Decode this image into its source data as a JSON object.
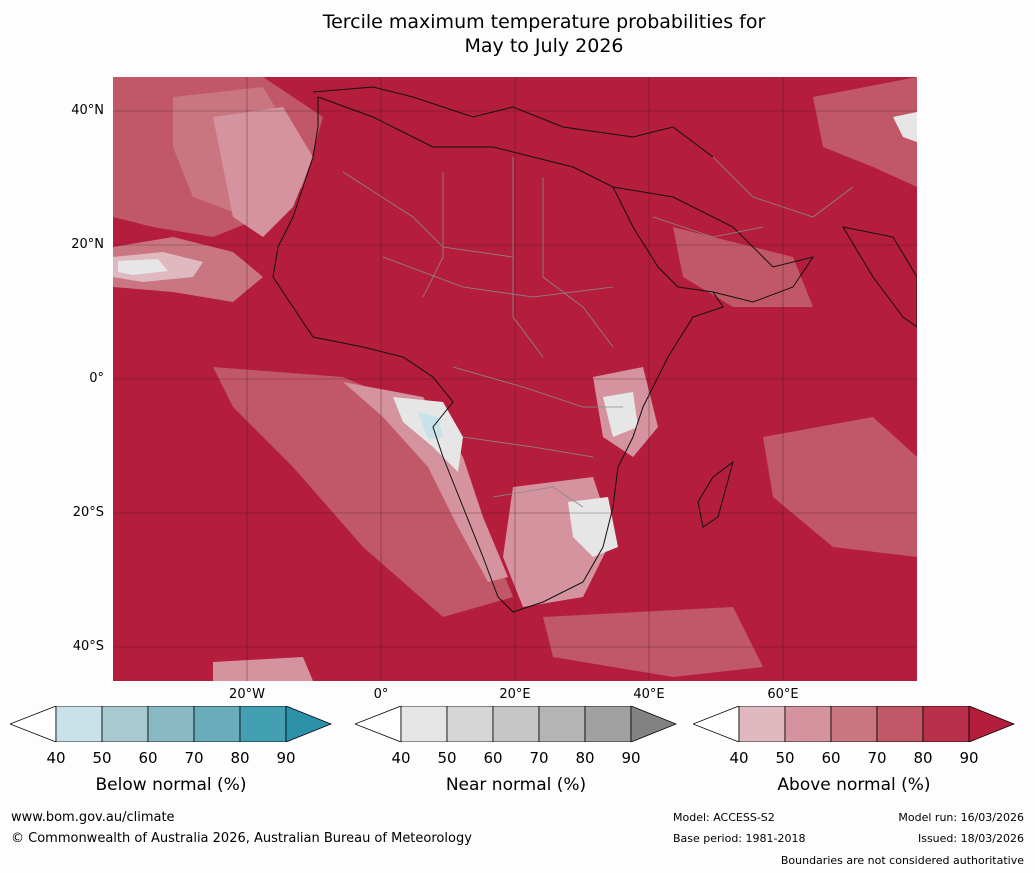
{
  "title_line1": "Tercile maximum temperature probabilities for",
  "title_line2": "May to July 2026",
  "map": {
    "lat_labels": [
      "40°N",
      "20°N",
      "0°",
      "20°S",
      "40°S"
    ],
    "lon_labels": [
      "20°W",
      "0°",
      "20°E",
      "40°E",
      "60°E"
    ],
    "dominant_color": "#b51d3c"
  },
  "colorbars": [
    {
      "title": "Below normal (%)",
      "ticks": [
        "40",
        "50",
        "60",
        "70",
        "80",
        "90"
      ],
      "colors": [
        "#ffffff",
        "#c9e1e8",
        "#a9c9d1",
        "#8ab9c6",
        "#6aabbc",
        "#43a0b3",
        "#2c90a8"
      ]
    },
    {
      "title": "Near normal (%)",
      "ticks": [
        "40",
        "50",
        "60",
        "70",
        "80",
        "90"
      ],
      "colors": [
        "#ffffff",
        "#e6e6e6",
        "#d6d6d6",
        "#c6c6c6",
        "#b4b4b4",
        "#a1a1a1",
        "#828282"
      ]
    },
    {
      "title": "Above normal (%)",
      "ticks": [
        "40",
        "50",
        "60",
        "70",
        "80",
        "90"
      ],
      "colors": [
        "#ffffff",
        "#e0b8c0",
        "#d4939e",
        "#c97680",
        "#c05867",
        "#b83049",
        "#b51d3c"
      ]
    }
  ],
  "footer": {
    "website": "www.bom.gov.au/climate",
    "copyright": "© Commonwealth of Australia 2026, Australian Bureau of Meteorology",
    "model": "Model: ACCESS-S2",
    "base_period": "Base period: 1981-2018",
    "model_run": "Model run: 16/03/2026",
    "issued": "Issued: 18/03/2026",
    "disclaimer": "Boundaries are not considered authoritative"
  }
}
